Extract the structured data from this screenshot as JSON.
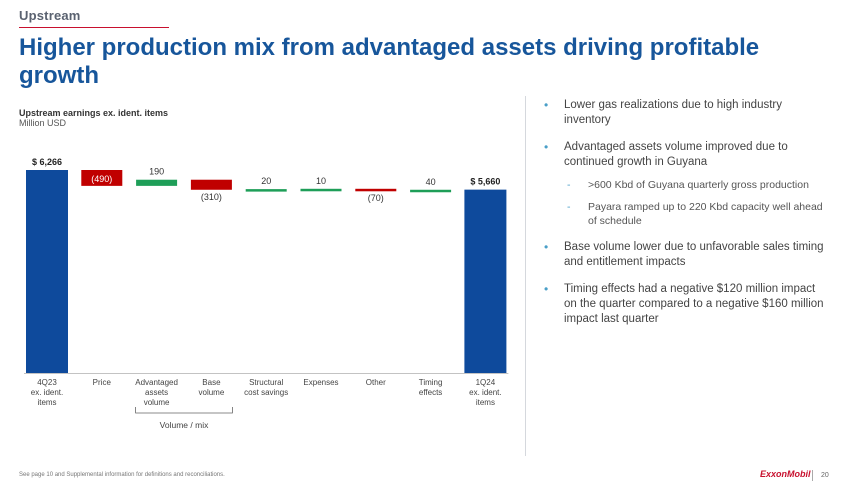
{
  "header": {
    "section_label": "Upstream",
    "title": "Higher production mix from advantaged assets driving profitable growth"
  },
  "colors": {
    "brand_blue": "#17569b",
    "bar_blue": "#0e4a9c",
    "negative_red": "#c00000",
    "positive_green": "#1e9e58",
    "brand_red": "#c8102e"
  },
  "chart_data": {
    "type": "bar",
    "subtype": "waterfall",
    "title": "Upstream earnings ex. ident. items",
    "unit": "Million USD",
    "categories": [
      "4Q23 ex. ident. items",
      "Price",
      "Advantaged assets volume",
      "Base volume",
      "Structural cost savings",
      "Expenses",
      "Other",
      "Timing effects",
      "1Q24 ex. ident. items"
    ],
    "category_lines": [
      [
        "4Q23",
        "ex. ident.",
        "items"
      ],
      [
        "Price"
      ],
      [
        "Advantaged",
        "assets",
        "volume"
      ],
      [
        "Base",
        "volume"
      ],
      [
        "Structural",
        "cost savings"
      ],
      [
        "Expenses"
      ],
      [
        "Other"
      ],
      [
        "Timing",
        "effects"
      ],
      [
        "1Q24",
        "ex. ident.",
        "items"
      ]
    ],
    "values": [
      6266,
      -490,
      190,
      -310,
      20,
      10,
      -70,
      40,
      5660
    ],
    "kinds": [
      "total",
      "delta",
      "delta",
      "delta",
      "delta",
      "delta",
      "delta",
      "delta",
      "total"
    ],
    "value_labels": [
      "$ 6,266",
      "(490)",
      "190",
      "(310)",
      "20",
      "10",
      "(70)",
      "40",
      "$ 5,660"
    ],
    "group_label": "Volume / mix",
    "group_span": [
      2,
      3
    ],
    "ylim": [
      0,
      6266
    ],
    "grid": false,
    "legend": "none"
  },
  "bullets": [
    {
      "text": "Lower gas realizations due to high industry inventory",
      "subs": []
    },
    {
      "text": "Advantaged assets volume improved due to continued growth in Guyana",
      "subs": [
        ">600 Kbd of Guyana quarterly gross production",
        "Payara ramped up to 220 Kbd capacity well ahead of schedule"
      ]
    },
    {
      "text": "Base volume lower due to unfavorable sales timing and entitlement impacts",
      "subs": []
    },
    {
      "text": "Timing effects had a negative $120 million impact on the quarter compared to a negative $160 million impact last quarter",
      "subs": []
    }
  ],
  "footer": {
    "footnote": "See page 10 and Supplemental information for definitions and reconciliations.",
    "logo": "ExxonMobil",
    "page_number": "20"
  }
}
